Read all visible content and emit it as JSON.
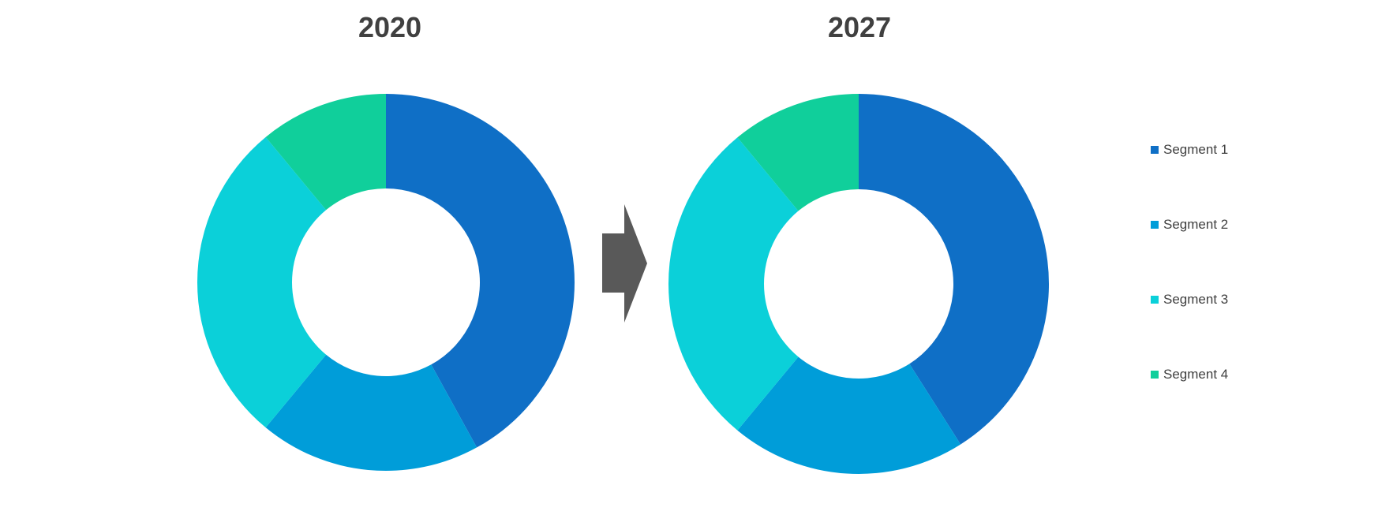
{
  "chart_data": [
    {
      "type": "pie",
      "title": "2020",
      "categories": [
        "Segment 1",
        "Segment 2",
        "Segment 3",
        "Segment 4"
      ],
      "values": [
        42,
        19,
        28,
        11
      ],
      "colors": [
        "#0F6FC6",
        "#009DD9",
        "#0BD0D9",
        "#10CF9B"
      ]
    },
    {
      "type": "pie",
      "title": "2027",
      "categories": [
        "Segment 1",
        "Segment 2",
        "Segment 3",
        "Segment 4"
      ],
      "values": [
        41,
        20,
        28,
        11
      ],
      "colors": [
        "#0F6FC6",
        "#009DD9",
        "#0BD0D9",
        "#10CF9B"
      ]
    }
  ],
  "legend": {
    "placement": "right",
    "items": [
      {
        "label": "Segment 1",
        "color": "#0F6FC6"
      },
      {
        "label": "Segment 2",
        "color": "#009DD9"
      },
      {
        "label": "Segment 3",
        "color": "#0BD0D9"
      },
      {
        "label": "Segment 4",
        "color": "#10CF9B"
      }
    ]
  },
  "arrow_color": "#595959",
  "arrow_icon": "chevron-arrow-right-icon"
}
